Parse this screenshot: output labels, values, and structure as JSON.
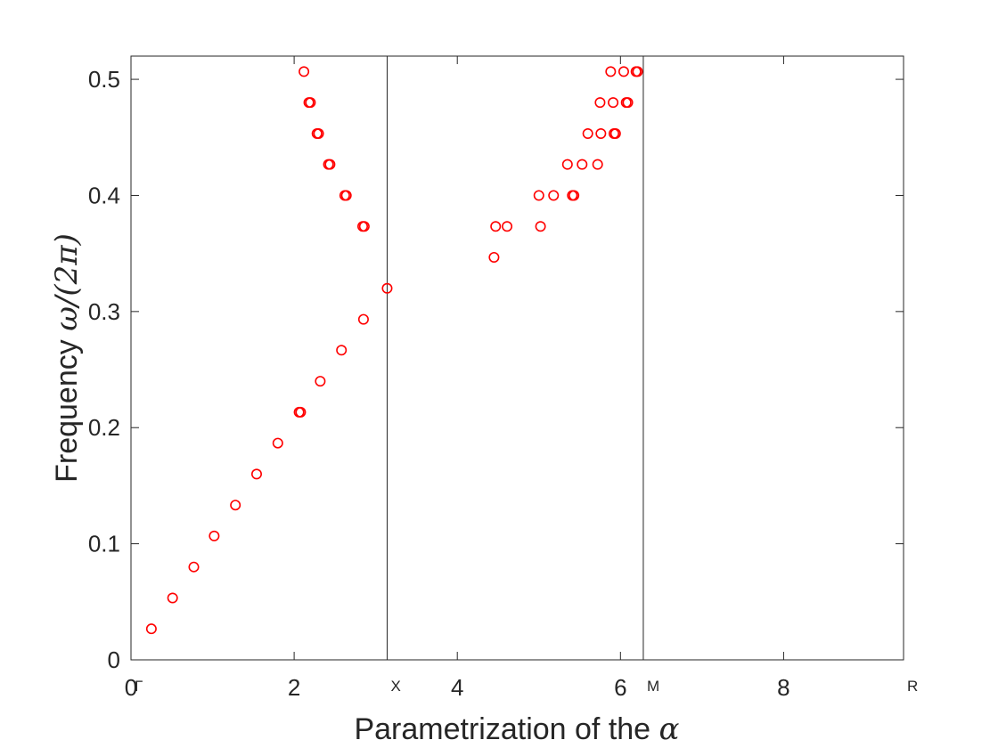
{
  "chart_data": {
    "type": "scatter",
    "xlabel": "Parametrization of the",
    "xlabel_symbol": "α",
    "ylabel": "Frequency",
    "ylabel_symbol": "ω/(2π)",
    "xlim": [
      0,
      9.47
    ],
    "ylim": [
      0,
      0.52
    ],
    "x_ticks": [
      0,
      2,
      4,
      6,
      8
    ],
    "x_tick_labels": [
      "0",
      "2",
      "4",
      "6",
      "8"
    ],
    "y_ticks": [
      0,
      0.1,
      0.2,
      0.3,
      0.4,
      0.5
    ],
    "y_tick_labels": [
      "0",
      "0.1",
      "0.2",
      "0.3",
      "0.4",
      "0.5"
    ],
    "symmetry_points": [
      {
        "label": "Γ",
        "x": 0
      },
      {
        "label": "X",
        "x": 3.14
      },
      {
        "label": "M",
        "x": 6.28
      },
      {
        "label": "R",
        "x": 9.47
      }
    ],
    "vertical_lines": [
      3.14,
      6.28
    ],
    "grid": false,
    "marker": "circle",
    "marker_color": "#ff0000",
    "points": [
      [
        0.25,
        0.0267
      ],
      [
        0.51,
        0.0533
      ],
      [
        0.77,
        0.08
      ],
      [
        1.02,
        0.1067
      ],
      [
        1.28,
        0.1333
      ],
      [
        1.54,
        0.16
      ],
      [
        1.8,
        0.1867
      ],
      [
        2.06,
        0.2133
      ],
      [
        2.08,
        0.2133
      ],
      [
        2.32,
        0.24
      ],
      [
        2.58,
        0.2667
      ],
      [
        2.85,
        0.2933
      ],
      [
        3.14,
        0.32
      ],
      [
        2.84,
        0.3733
      ],
      [
        2.86,
        0.3733
      ],
      [
        2.62,
        0.4
      ],
      [
        2.64,
        0.4
      ],
      [
        2.42,
        0.4267
      ],
      [
        2.44,
        0.4267
      ],
      [
        2.28,
        0.4533
      ],
      [
        2.3,
        0.4533
      ],
      [
        2.18,
        0.48
      ],
      [
        2.2,
        0.48
      ],
      [
        2.12,
        0.5067
      ],
      [
        4.45,
        0.3467
      ],
      [
        4.47,
        0.3733
      ],
      [
        4.61,
        0.3733
      ],
      [
        5.0,
        0.4
      ],
      [
        5.02,
        0.3733
      ],
      [
        5.18,
        0.4
      ],
      [
        5.41,
        0.4
      ],
      [
        5.43,
        0.4
      ],
      [
        5.35,
        0.4267
      ],
      [
        5.53,
        0.4267
      ],
      [
        5.72,
        0.4267
      ],
      [
        5.6,
        0.4533
      ],
      [
        5.76,
        0.4533
      ],
      [
        5.92,
        0.4533
      ],
      [
        5.94,
        0.4533
      ],
      [
        5.75,
        0.48
      ],
      [
        5.91,
        0.48
      ],
      [
        6.07,
        0.48
      ],
      [
        6.09,
        0.48
      ],
      [
        5.88,
        0.5067
      ],
      [
        6.04,
        0.5067
      ],
      [
        6.19,
        0.5067
      ],
      [
        6.21,
        0.5067
      ]
    ]
  }
}
